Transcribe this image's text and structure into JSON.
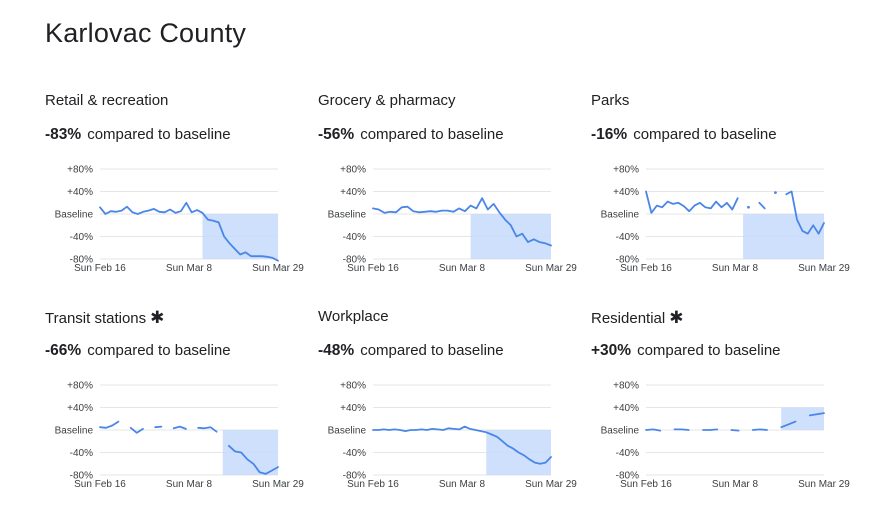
{
  "title": "Karlovac County",
  "compared_label": "compared to baseline",
  "colors": {
    "line": "#4a86e8",
    "fill": "#c6dafc",
    "grid": "#e6e6e6",
    "text": "#202124"
  },
  "chart_data": [
    {
      "type": "line",
      "title": "Retail & recreation",
      "starred": false,
      "summary": "-83%",
      "y_ticks": [
        "+80%",
        "+40%",
        "Baseline",
        "-40%",
        "-80%"
      ],
      "ylim": [
        -80,
        80
      ],
      "x_ticks": [
        "Sun Feb 16",
        "Sun Mar 8",
        "Sun Mar 29"
      ],
      "x_tick_days": [
        0,
        21,
        42
      ],
      "x_range": [
        0,
        42
      ],
      "values": [
        12,
        0,
        5,
        4,
        6,
        13,
        3,
        0,
        4,
        6,
        9,
        4,
        3,
        8,
        2,
        5,
        20,
        3,
        7,
        2,
        -10,
        -12,
        -15,
        -40,
        -52,
        -62,
        -72,
        -68,
        -75,
        -75,
        -75,
        -76,
        -78,
        -83
      ]
    },
    {
      "type": "line",
      "title": "Grocery & pharmacy",
      "starred": false,
      "summary": "-56%",
      "y_ticks": [
        "+80%",
        "+40%",
        "Baseline",
        "-40%",
        "-80%"
      ],
      "ylim": [
        -80,
        80
      ],
      "x_ticks": [
        "Sun Feb 16",
        "Sun Mar 8",
        "Sun Mar 29"
      ],
      "x_tick_days": [
        0,
        21,
        42
      ],
      "x_range": [
        0,
        42
      ],
      "values": [
        10,
        8,
        2,
        4,
        3,
        12,
        13,
        5,
        3,
        4,
        5,
        4,
        6,
        6,
        4,
        10,
        5,
        15,
        10,
        28,
        8,
        18,
        3,
        -10,
        -20,
        -40,
        -35,
        -50,
        -45,
        -50,
        -52,
        -56
      ]
    },
    {
      "type": "line",
      "title": "Parks",
      "starred": false,
      "summary": "-16%",
      "y_ticks": [
        "+80%",
        "+40%",
        "Baseline",
        "-40%",
        "-80%"
      ],
      "ylim": [
        -80,
        80
      ],
      "x_ticks": [
        "Sun Feb 16",
        "Sun Mar 8",
        "Sun Mar 29"
      ],
      "x_tick_days": [
        0,
        21,
        42
      ],
      "x_range": [
        0,
        42
      ],
      "values": [
        40,
        2,
        15,
        12,
        22,
        18,
        20,
        14,
        5,
        15,
        20,
        12,
        10,
        22,
        12,
        20,
        8,
        28,
        null,
        12,
        null,
        20,
        10,
        null,
        38,
        null,
        35,
        40,
        -10,
        -30,
        -35,
        -20,
        -35,
        -16
      ]
    },
    {
      "type": "line",
      "title": "Transit stations",
      "starred": true,
      "summary": "-66%",
      "y_ticks": [
        "+80%",
        "+40%",
        "Baseline",
        "-40%",
        "-80%"
      ],
      "ylim": [
        -80,
        80
      ],
      "x_ticks": [
        "Sun Feb 16",
        "Sun Mar 8",
        "Sun Mar 29"
      ],
      "x_tick_days": [
        0,
        21,
        42
      ],
      "x_range": [
        0,
        42
      ],
      "values": [
        5,
        4,
        8,
        15,
        null,
        4,
        -5,
        2,
        null,
        5,
        6,
        null,
        3,
        6,
        2,
        null,
        4,
        3,
        5,
        -3,
        null,
        -28,
        -38,
        -40,
        -52,
        -60,
        -75,
        -78,
        -72,
        -66
      ]
    },
    {
      "type": "line",
      "title": "Workplace",
      "starred": false,
      "summary": "-48%",
      "y_ticks": [
        "+80%",
        "+40%",
        "Baseline",
        "-40%",
        "-80%"
      ],
      "ylim": [
        -80,
        80
      ],
      "x_ticks": [
        "Sun Feb 16",
        "Sun Mar 8",
        "Sun Mar 29"
      ],
      "x_tick_days": [
        0,
        21,
        42
      ],
      "x_range": [
        0,
        42
      ],
      "values": [
        0,
        0,
        1,
        0,
        1,
        0,
        -2,
        0,
        0,
        1,
        0,
        2,
        1,
        0,
        3,
        2,
        1,
        6,
        2,
        0,
        -2,
        -4,
        -8,
        -12,
        -20,
        -28,
        -33,
        -40,
        -45,
        -52,
        -58,
        -60,
        -58,
        -48
      ]
    },
    {
      "type": "line",
      "title": "Residential",
      "starred": true,
      "summary": "+30%",
      "y_ticks": [
        "+80%",
        "+40%",
        "Baseline",
        "-40%",
        "-80%"
      ],
      "ylim": [
        -80,
        80
      ],
      "x_ticks": [
        "Sun Feb 16",
        "Sun Mar 8",
        "Sun Mar 29"
      ],
      "x_tick_days": [
        0,
        21,
        42
      ],
      "x_range": [
        0,
        42
      ],
      "values": [
        0,
        1,
        -1,
        null,
        1,
        1,
        0,
        null,
        0,
        0,
        1,
        null,
        0,
        -1,
        null,
        0,
        1,
        0,
        null,
        5,
        10,
        15,
        null,
        26,
        28,
        30
      ]
    }
  ]
}
